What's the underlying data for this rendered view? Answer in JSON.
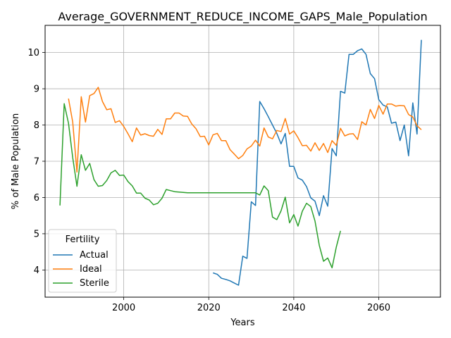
{
  "chart_data": {
    "type": "line",
    "title": "Average_GOVERNMENT_REDUCE_INCOME_GAPS_Male_Population",
    "xlabel": "Years",
    "ylabel": "% of Male Population",
    "xlim": [
      1981.5,
      2074.5
    ],
    "ylim": [
      3.25,
      10.75
    ],
    "xticks": [
      2000,
      2020,
      2040,
      2060
    ],
    "yticks": [
      4,
      5,
      6,
      7,
      8,
      9,
      10
    ],
    "grid": true,
    "legend": {
      "title": "Fertility",
      "position": "lower-left"
    },
    "series": [
      {
        "name": "Actual",
        "color": "#1f77b4",
        "x": [
          2021,
          2022,
          2023,
          2024,
          2025,
          2026,
          2027,
          2028,
          2029,
          2030,
          2031,
          2032,
          2033,
          2034,
          2035,
          2036,
          2037,
          2038,
          2039,
          2040,
          2041,
          2042,
          2043,
          2044,
          2045,
          2046,
          2047,
          2048,
          2049,
          2050,
          2051,
          2052,
          2053,
          2054,
          2055,
          2056,
          2057,
          2058,
          2059,
          2060,
          2061,
          2062,
          2063,
          2064,
          2065,
          2066,
          2067,
          2068,
          2069,
          2070
        ],
        "y": [
          3.92,
          3.88,
          3.77,
          3.74,
          3.7,
          3.64,
          3.58,
          4.38,
          4.32,
          5.88,
          5.78,
          8.65,
          8.45,
          8.23,
          8.0,
          7.77,
          7.48,
          7.77,
          6.86,
          6.86,
          6.54,
          6.48,
          6.3,
          5.99,
          5.9,
          5.5,
          6.05,
          5.76,
          7.35,
          7.15,
          8.93,
          8.88,
          9.95,
          9.95,
          10.05,
          10.1,
          9.95,
          9.42,
          9.28,
          8.7,
          8.55,
          8.5,
          8.05,
          8.08,
          7.57,
          8.0,
          7.15,
          8.61,
          7.75,
          10.35
        ]
      },
      {
        "name": "Ideal",
        "color": "#ff7f0e",
        "x": [
          1987,
          1988,
          1989,
          1990,
          1991,
          1992,
          1993,
          1994,
          1995,
          1996,
          1997,
          1998,
          1999,
          2000,
          2001,
          2002,
          2003,
          2004,
          2005,
          2006,
          2007,
          2008,
          2009,
          2010,
          2011,
          2012,
          2013,
          2014,
          2015,
          2016,
          2017,
          2018,
          2019,
          2020,
          2021,
          2022,
          2023,
          2024,
          2025,
          2026,
          2027,
          2028,
          2029,
          2030,
          2031,
          2032,
          2033,
          2034,
          2035,
          2036,
          2037,
          2038,
          2039,
          2040,
          2041,
          2042,
          2043,
          2044,
          2045,
          2046,
          2047,
          2048,
          2049,
          2050,
          2051,
          2052,
          2053,
          2054,
          2055,
          2056,
          2057,
          2058,
          2059,
          2060,
          2061,
          2062,
          2063,
          2064,
          2065,
          2066,
          2067,
          2068,
          2069,
          2070
        ],
        "y": [
          8.73,
          8.08,
          6.7,
          8.78,
          8.08,
          8.81,
          8.87,
          9.04,
          8.65,
          8.42,
          8.45,
          8.07,
          8.12,
          7.96,
          7.76,
          7.54,
          7.92,
          7.72,
          7.76,
          7.71,
          7.69,
          7.88,
          7.74,
          8.17,
          8.17,
          8.33,
          8.33,
          8.25,
          8.24,
          8.03,
          7.9,
          7.68,
          7.69,
          7.45,
          7.73,
          7.77,
          7.57,
          7.57,
          7.32,
          7.2,
          7.07,
          7.16,
          7.34,
          7.42,
          7.58,
          7.42,
          7.92,
          7.67,
          7.62,
          7.85,
          7.82,
          8.18,
          7.75,
          7.84,
          7.65,
          7.43,
          7.44,
          7.28,
          7.51,
          7.3,
          7.49,
          7.24,
          7.57,
          7.44,
          7.91,
          7.7,
          7.75,
          7.76,
          7.6,
          8.09,
          8.0,
          8.43,
          8.18,
          8.54,
          8.3,
          8.58,
          8.58,
          8.52,
          8.54,
          8.53,
          8.29,
          8.22,
          7.98,
          7.87
        ]
      },
      {
        "name": "Sterile",
        "color": "#2ca02c",
        "x": [
          1985,
          1986,
          1987,
          1988,
          1989,
          1990,
          1991,
          1992,
          1993,
          1994,
          1995,
          1996,
          1997,
          1998,
          1999,
          2000,
          2001,
          2002,
          2003,
          2004,
          2005,
          2006,
          2007,
          2008,
          2009,
          2010,
          2011,
          2012,
          2013,
          2014,
          2015,
          2016,
          2017,
          2018,
          2019,
          2020,
          2021,
          2022,
          2023,
          2024,
          2025,
          2026,
          2027,
          2028,
          2029,
          2030,
          2031,
          2032,
          2033,
          2034,
          2035,
          2036,
          2037,
          2038,
          2039,
          2040,
          2041,
          2042,
          2043,
          2044,
          2045,
          2046,
          2047,
          2048,
          2049,
          2050,
          2051
        ],
        "y": [
          5.78,
          8.59,
          8.05,
          7.1,
          6.31,
          7.18,
          6.75,
          6.94,
          6.49,
          6.31,
          6.33,
          6.47,
          6.68,
          6.75,
          6.61,
          6.62,
          6.44,
          6.32,
          6.12,
          6.12,
          5.98,
          5.93,
          5.8,
          5.84,
          5.98,
          6.22,
          6.19,
          6.16,
          6.15,
          6.14,
          6.13,
          6.13,
          6.13,
          6.13,
          6.13,
          6.13,
          6.13,
          6.13,
          6.13,
          6.13,
          6.13,
          6.13,
          6.13,
          6.13,
          6.13,
          6.13,
          6.13,
          6.07,
          6.32,
          6.19,
          5.46,
          5.39,
          5.63,
          6.01,
          5.3,
          5.53,
          5.21,
          5.62,
          5.84,
          5.75,
          5.35,
          4.68,
          4.24,
          4.33,
          4.06,
          4.63,
          5.08
        ]
      }
    ]
  }
}
